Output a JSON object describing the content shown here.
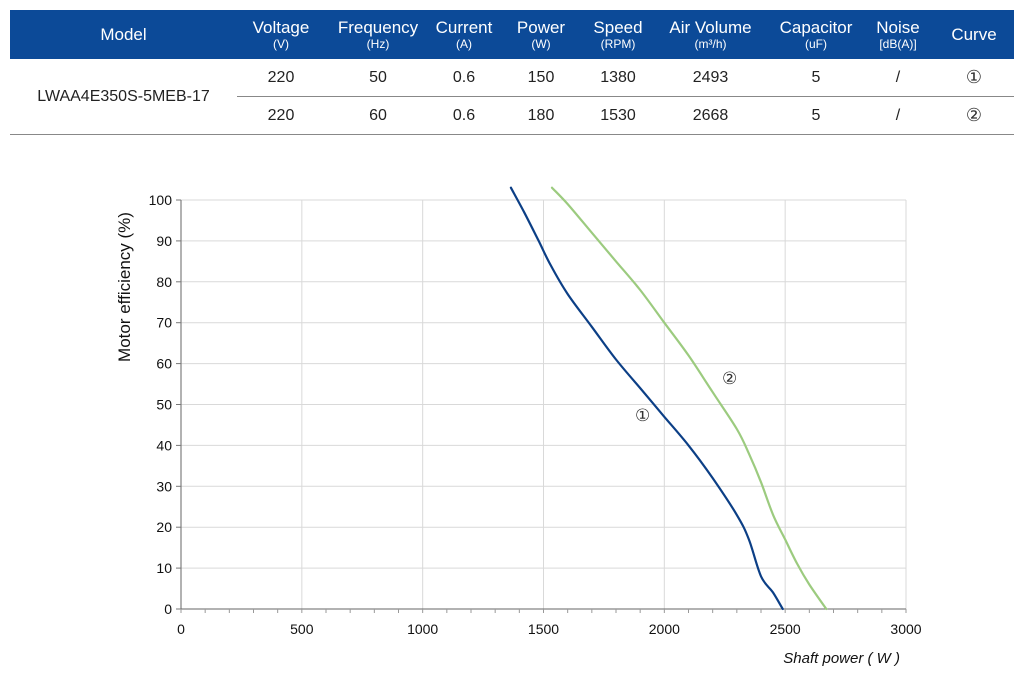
{
  "table": {
    "headers": [
      {
        "label": "Model",
        "unit": ""
      },
      {
        "label": "Voltage",
        "unit": "(V)"
      },
      {
        "label": "Frequency",
        "unit": "(Hz)"
      },
      {
        "label": "Current",
        "unit": "(A)"
      },
      {
        "label": "Power",
        "unit": "(W)"
      },
      {
        "label": "Speed",
        "unit": "(RPM)"
      },
      {
        "label": "Air Volume",
        "unit": "(m³/h)"
      },
      {
        "label": "Capacitor",
        "unit": "(uF)"
      },
      {
        "label": "Noise",
        "unit": "[dB(A)]"
      },
      {
        "label": "Curve",
        "unit": ""
      }
    ],
    "model": "LWAA4E350S-5MEB-17",
    "rows": [
      {
        "voltage": "220",
        "frequency": "50",
        "current": "0.6",
        "power": "150",
        "speed": "1380",
        "air_volume": "2493",
        "capacitor": "5",
        "noise": "/",
        "curve": "①"
      },
      {
        "voltage": "220",
        "frequency": "60",
        "current": "0.6",
        "power": "180",
        "speed": "1530",
        "air_volume": "2668",
        "capacitor": "5",
        "noise": "/",
        "curve": "②"
      }
    ]
  },
  "colors": {
    "header_bg": "#0c4a98",
    "curve1": "#0c3f86",
    "curve2": "#9ccb7f",
    "grid": "#d9d9d9"
  },
  "chart_data": {
    "type": "line",
    "xlabel": "Shaft power ( W )",
    "ylabel": "Motor efficiency  (%)",
    "xlim": [
      0,
      3000
    ],
    "ylim": [
      0,
      100
    ],
    "xticks": [
      0,
      500,
      1000,
      1500,
      2000,
      2500,
      3000
    ],
    "yticks": [
      0,
      10,
      20,
      30,
      40,
      50,
      60,
      70,
      80,
      90,
      100
    ],
    "grid": true,
    "series": [
      {
        "name": "①",
        "color": "#0c3f86",
        "x": [
          1365,
          1420,
          1480,
          1530,
          1600,
          1700,
          1800,
          1900,
          2000,
          2100,
          2200,
          2300,
          2350,
          2400,
          2450,
          2490
        ],
        "y": [
          103,
          97,
          90,
          84,
          77,
          69,
          61,
          54,
          47,
          40,
          32,
          23,
          17,
          8,
          4,
          0
        ]
      },
      {
        "name": "②",
        "color": "#9ccb7f",
        "x": [
          1535,
          1600,
          1700,
          1800,
          1900,
          2000,
          2100,
          2200,
          2300,
          2350,
          2400,
          2450,
          2500,
          2550,
          2600,
          2670
        ],
        "y": [
          103,
          99,
          92,
          85,
          78,
          70,
          62,
          53,
          44,
          38,
          31,
          23,
          17,
          11,
          6,
          0
        ]
      }
    ],
    "annotations": [
      {
        "text": "①",
        "x": 1910,
        "y": 46
      },
      {
        "text": "②",
        "x": 2270,
        "y": 55
      }
    ]
  }
}
